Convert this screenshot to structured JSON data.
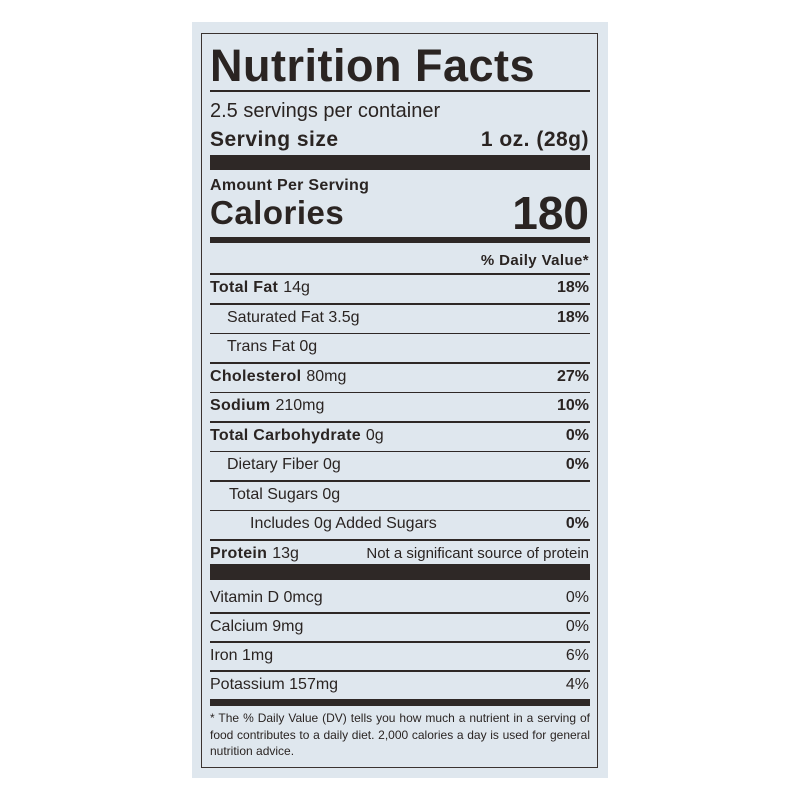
{
  "label": {
    "title": "Nutrition Facts",
    "servings_per_container": "2.5 servings per container",
    "serving_size_label": "Serving size",
    "serving_size_value": "1 oz. (28g)",
    "amount_per_serving": "Amount Per Serving",
    "calories_label": "Calories",
    "calories_value": "180",
    "daily_value_header": "% Daily Value*",
    "nutrients": [
      {
        "name": "Total Fat",
        "amount": "14g",
        "dv": "18%"
      },
      {
        "name": "Saturated Fat 3.5g",
        "amount": "",
        "dv": "18%"
      },
      {
        "name": "Trans Fat 0g",
        "amount": "",
        "dv": ""
      },
      {
        "name": "Cholesterol",
        "amount": "80mg",
        "dv": "27%"
      },
      {
        "name": "Sodium",
        "amount": "210mg",
        "dv": "10%"
      },
      {
        "name": "Total Carbohydrate",
        "amount": "0g",
        "dv": "0%"
      },
      {
        "name": "Dietary Fiber 0g",
        "amount": "",
        "dv": "0%"
      },
      {
        "name": "Total Sugars 0g",
        "amount": "",
        "dv": ""
      },
      {
        "name": "Includes 0g Added Sugars",
        "amount": "",
        "dv": "0%"
      },
      {
        "name": "Protein",
        "amount": "13g",
        "dv": "Not a significant source of protein"
      }
    ],
    "vitamins": [
      {
        "name": "Vitamin D 0mcg",
        "dv": "0%"
      },
      {
        "name": "Calcium 9mg",
        "dv": "0%"
      },
      {
        "name": "Iron 1mg",
        "dv": "6%"
      },
      {
        "name": "Potassium 157mg",
        "dv": "4%"
      }
    ],
    "footnote": "* The % Daily Value (DV) tells you how much a nutrient in a serving of food contributes to a daily diet. 2,000 calories a day is used for general nutrition advice."
  }
}
